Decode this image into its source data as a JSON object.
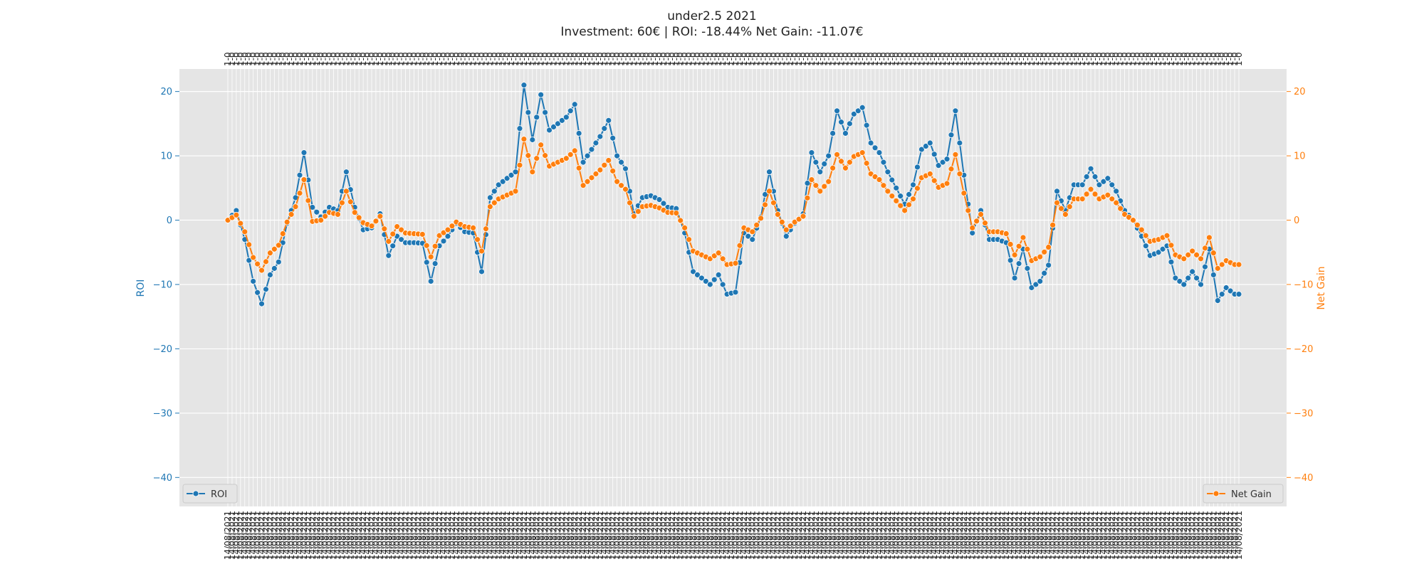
{
  "chart_data": {
    "type": "line",
    "title": "under2.5 2021",
    "subtitle": "Investment: 60€ | ROI: -18.44% Net Gain: -11.07€",
    "xlabel": "",
    "ylabel": "ROI",
    "ylabel_right": "Net Gain",
    "ylim": [
      -44.5,
      23.5
    ],
    "ylim_right": [
      -44.5,
      23.5
    ],
    "yticks": [
      -40,
      -30,
      -20,
      -10,
      0,
      10,
      20
    ],
    "grid": true,
    "legend_left": "bottom-left",
    "legend_right": "bottom-right",
    "n_points": 240,
    "x_axis_note": "bottom axis: dates (overlapping, unreadable); top axis: match labels (overlapping, unreadable)",
    "x_label_bottom_sample": "14/08/2021",
    "x_label_top_sample": "1-0",
    "colors": {
      "roi": "#1f77b4",
      "net_gain": "#ff7f0e",
      "plot_bg": "#e5e5e5",
      "grid": "#ffffff"
    },
    "series": [
      {
        "name": "ROI",
        "axis": "left",
        "keyframes": [
          [
            0,
            0
          ],
          [
            2,
            1.5
          ],
          [
            4,
            -3
          ],
          [
            6,
            -9.5
          ],
          [
            8,
            -13
          ],
          [
            10,
            -8.5
          ],
          [
            12,
            -6.5
          ],
          [
            14,
            -0.5
          ],
          [
            16,
            3.5
          ],
          [
            18,
            10.5
          ],
          [
            20,
            2
          ],
          [
            22,
            0.5
          ],
          [
            24,
            2
          ],
          [
            26,
            1.5
          ],
          [
            28,
            7.5
          ],
          [
            30,
            2
          ],
          [
            32,
            -1.5
          ],
          [
            34,
            -1.2
          ],
          [
            36,
            1
          ],
          [
            38,
            -5.5
          ],
          [
            40,
            -2.5
          ],
          [
            42,
            -3.5
          ],
          [
            44,
            -3.5
          ],
          [
            46,
            -3.6
          ],
          [
            48,
            -9.5
          ],
          [
            50,
            -4
          ],
          [
            52,
            -2.5
          ],
          [
            54,
            -0.5
          ],
          [
            56,
            -1.8
          ],
          [
            58,
            -2
          ],
          [
            60,
            -8
          ],
          [
            62,
            3.5
          ],
          [
            64,
            5.5
          ],
          [
            66,
            6.5
          ],
          [
            68,
            7.5
          ],
          [
            70,
            21
          ],
          [
            72,
            12.5
          ],
          [
            74,
            19.5
          ],
          [
            76,
            14
          ],
          [
            78,
            15
          ],
          [
            80,
            16
          ],
          [
            82,
            18
          ],
          [
            84,
            9
          ],
          [
            86,
            11
          ],
          [
            88,
            13
          ],
          [
            90,
            15.5
          ],
          [
            92,
            10
          ],
          [
            94,
            8
          ],
          [
            96,
            1
          ],
          [
            98,
            3.5
          ],
          [
            100,
            3.8
          ],
          [
            102,
            3.2
          ],
          [
            104,
            2
          ],
          [
            106,
            1.8
          ],
          [
            108,
            -2
          ],
          [
            110,
            -8
          ],
          [
            112,
            -9
          ],
          [
            114,
            -10
          ],
          [
            116,
            -8.5
          ],
          [
            118,
            -11.5
          ],
          [
            120,
            -11.2
          ],
          [
            122,
            -2
          ],
          [
            124,
            -3
          ],
          [
            126,
            0.5
          ],
          [
            128,
            7.5
          ],
          [
            130,
            1.5
          ],
          [
            132,
            -2.5
          ],
          [
            134,
            -0.5
          ],
          [
            136,
            1
          ],
          [
            138,
            10.5
          ],
          [
            140,
            7.5
          ],
          [
            142,
            10
          ],
          [
            144,
            17
          ],
          [
            146,
            13.5
          ],
          [
            148,
            16.5
          ],
          [
            150,
            17.5
          ],
          [
            152,
            12
          ],
          [
            154,
            10.5
          ],
          [
            156,
            7.5
          ],
          [
            158,
            5
          ],
          [
            160,
            2.5
          ],
          [
            162,
            5.5
          ],
          [
            164,
            11
          ],
          [
            166,
            12
          ],
          [
            168,
            8.5
          ],
          [
            170,
            9.5
          ],
          [
            172,
            17
          ],
          [
            174,
            7
          ],
          [
            176,
            -2
          ],
          [
            178,
            1.5
          ],
          [
            180,
            -3
          ],
          [
            182,
            -3
          ],
          [
            184,
            -3.5
          ],
          [
            186,
            -9
          ],
          [
            188,
            -4.5
          ],
          [
            190,
            -10.5
          ],
          [
            192,
            -9.5
          ],
          [
            194,
            -7
          ],
          [
            196,
            4.5
          ],
          [
            198,
            1.5
          ],
          [
            200,
            5.5
          ],
          [
            202,
            5.5
          ],
          [
            204,
            8
          ],
          [
            206,
            5.5
          ],
          [
            208,
            6.5
          ],
          [
            210,
            4.5
          ],
          [
            212,
            1.5
          ],
          [
            214,
            0
          ],
          [
            216,
            -2.5
          ],
          [
            218,
            -5.5
          ],
          [
            220,
            -5
          ],
          [
            222,
            -4
          ],
          [
            224,
            -9
          ],
          [
            226,
            -10
          ],
          [
            228,
            -8
          ],
          [
            230,
            -10
          ],
          [
            232,
            -4.5
          ],
          [
            234,
            -12.5
          ],
          [
            236,
            -10.5
          ],
          [
            238,
            -11.5
          ]
        ]
      },
      {
        "name": "Net Gain",
        "axis": "right",
        "keyframes": [
          [
            0,
            0
          ],
          [
            2,
            0.8
          ],
          [
            4,
            -1.8
          ],
          [
            6,
            -5.8
          ],
          [
            8,
            -7.8
          ],
          [
            10,
            -5.1
          ],
          [
            12,
            -3.9
          ],
          [
            14,
            -0.3
          ],
          [
            16,
            2.1
          ],
          [
            18,
            6.3
          ],
          [
            20,
            -0.2
          ],
          [
            22,
            0
          ],
          [
            24,
            1.2
          ],
          [
            26,
            0.9
          ],
          [
            28,
            4.5
          ],
          [
            30,
            1.2
          ],
          [
            32,
            -0.4
          ],
          [
            34,
            -0.9
          ],
          [
            36,
            0.6
          ],
          [
            38,
            -3.3
          ],
          [
            40,
            -1
          ],
          [
            42,
            -2
          ],
          [
            44,
            -2.1
          ],
          [
            46,
            -2.2
          ],
          [
            48,
            -5.7
          ],
          [
            50,
            -2.4
          ],
          [
            52,
            -1.5
          ],
          [
            54,
            -0.3
          ],
          [
            56,
            -1
          ],
          [
            58,
            -1.2
          ],
          [
            60,
            -4.8
          ],
          [
            62,
            2.1
          ],
          [
            64,
            3.3
          ],
          [
            66,
            3.9
          ],
          [
            68,
            4.5
          ],
          [
            70,
            12.6
          ],
          [
            72,
            7.5
          ],
          [
            74,
            11.7
          ],
          [
            76,
            8.4
          ],
          [
            78,
            9
          ],
          [
            80,
            9.6
          ],
          [
            82,
            10.8
          ],
          [
            84,
            5.4
          ],
          [
            86,
            6.6
          ],
          [
            88,
            7.8
          ],
          [
            90,
            9.3
          ],
          [
            92,
            6
          ],
          [
            94,
            4.8
          ],
          [
            96,
            0.6
          ],
          [
            98,
            2.1
          ],
          [
            100,
            2.3
          ],
          [
            102,
            1.9
          ],
          [
            104,
            1.2
          ],
          [
            106,
            1.1
          ],
          [
            108,
            -1.2
          ],
          [
            110,
            -4.8
          ],
          [
            112,
            -5.4
          ],
          [
            114,
            -6
          ],
          [
            116,
            -5.1
          ],
          [
            118,
            -6.9
          ],
          [
            120,
            -6.7
          ],
          [
            122,
            -1.2
          ],
          [
            124,
            -1.8
          ],
          [
            126,
            0.3
          ],
          [
            128,
            4.5
          ],
          [
            130,
            0.9
          ],
          [
            132,
            -1.5
          ],
          [
            134,
            -0.3
          ],
          [
            136,
            0.6
          ],
          [
            138,
            6.3
          ],
          [
            140,
            4.5
          ],
          [
            142,
            6
          ],
          [
            144,
            10.2
          ],
          [
            146,
            8.1
          ],
          [
            148,
            9.9
          ],
          [
            150,
            10.5
          ],
          [
            152,
            7.2
          ],
          [
            154,
            6.3
          ],
          [
            156,
            4.5
          ],
          [
            158,
            3
          ],
          [
            160,
            1.5
          ],
          [
            162,
            3.3
          ],
          [
            164,
            6.6
          ],
          [
            166,
            7.2
          ],
          [
            168,
            5.1
          ],
          [
            170,
            5.7
          ],
          [
            172,
            10.2
          ],
          [
            174,
            4.2
          ],
          [
            176,
            -1.2
          ],
          [
            178,
            0.9
          ],
          [
            180,
            -1.8
          ],
          [
            182,
            -1.8
          ],
          [
            184,
            -2.1
          ],
          [
            186,
            -5.4
          ],
          [
            188,
            -2.7
          ],
          [
            190,
            -6.3
          ],
          [
            192,
            -5.7
          ],
          [
            194,
            -4.2
          ],
          [
            196,
            2.7
          ],
          [
            198,
            0.9
          ],
          [
            200,
            3.3
          ],
          [
            202,
            3.3
          ],
          [
            204,
            4.8
          ],
          [
            206,
            3.3
          ],
          [
            208,
            3.9
          ],
          [
            210,
            2.7
          ],
          [
            212,
            0.9
          ],
          [
            214,
            0
          ],
          [
            216,
            -1.5
          ],
          [
            218,
            -3.3
          ],
          [
            220,
            -3
          ],
          [
            222,
            -2.4
          ],
          [
            224,
            -5.4
          ],
          [
            226,
            -6
          ],
          [
            228,
            -4.8
          ],
          [
            230,
            -6
          ],
          [
            232,
            -2.7
          ],
          [
            234,
            -7.5
          ],
          [
            236,
            -6.3
          ],
          [
            238,
            -6.9
          ]
        ]
      }
    ],
    "keyframe_note": "keyframes are [point_index, value] pairs; intermediate points are linearly interpolated"
  }
}
